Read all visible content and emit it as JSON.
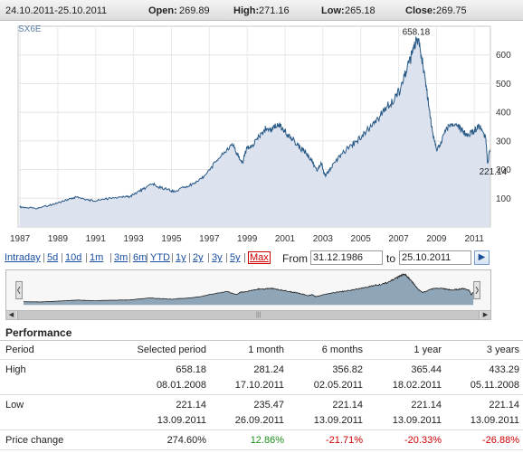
{
  "header": {
    "date_range": "24.10.2011-25.10.2011",
    "open_label": "Open:",
    "open_value": "269.89",
    "high_label": "High:",
    "high_value": "271.16",
    "low_label": "Low:",
    "low_value": "265.18",
    "close_label": "Close:",
    "close_value": "269.75"
  },
  "chart_data": {
    "type": "area",
    "title": "",
    "symbol": "SX6E",
    "xlabel": "",
    "ylabel": "",
    "x_ticks": [
      "1987",
      "1989",
      "1991",
      "1993",
      "1995",
      "1997",
      "1999",
      "2001",
      "2003",
      "2005",
      "2007",
      "2009",
      "2011"
    ],
    "y_ticks": [
      100,
      200,
      300,
      400,
      500,
      600
    ],
    "xlim": [
      1986.9,
      2011.85
    ],
    "ylim": [
      0,
      700
    ],
    "grid": true,
    "y_axis_side": "right",
    "series": [
      {
        "x": [
          1986.98,
          1987.3,
          1987.8,
          1988.2,
          1988.7,
          1989.2,
          1989.6,
          1990.0,
          1990.5,
          1990.9,
          1991.3,
          1991.8,
          1992.3,
          1992.8,
          1993.1,
          1993.5,
          1994.0,
          1994.3,
          1994.8,
          1995.2,
          1995.7,
          1996.2,
          1996.6,
          1997.0,
          1997.4,
          1997.8,
          1998.2,
          1998.5,
          1998.75,
          1999.0,
          1999.2,
          1999.5,
          1999.8,
          2000.0,
          2000.3,
          2000.6,
          2000.9,
          2001.2,
          2001.5,
          2001.8,
          2002.1,
          2002.4,
          2002.7,
          2002.9,
          2003.1,
          2003.3,
          2003.6,
          2004.0,
          2004.4,
          2004.8,
          2005.2,
          2005.6,
          2006.0,
          2006.4,
          2006.8,
          2007.1,
          2007.4,
          2007.7,
          2007.9,
          2008.02,
          2008.2,
          2008.4,
          2008.6,
          2008.8,
          2009.0,
          2009.2,
          2009.5,
          2009.8,
          2010.1,
          2010.4,
          2010.7,
          2011.0,
          2011.2,
          2011.4,
          2011.6,
          2011.7,
          2011.82
        ],
        "y": [
          70,
          68,
          65,
          70,
          78,
          88,
          98,
          104,
          96,
          90,
          96,
          100,
          104,
          106,
          118,
          132,
          150,
          140,
          130,
          122,
          140,
          150,
          168,
          200,
          232,
          262,
          290,
          250,
          225,
          280,
          275,
          305,
          330,
          345,
          335,
          362,
          340,
          320,
          300,
          275,
          260,
          230,
          195,
          225,
          180,
          190,
          225,
          255,
          280,
          300,
          330,
          350,
          385,
          420,
          450,
          480,
          540,
          600,
          640,
          658.18,
          600,
          520,
          420,
          330,
          270,
          285,
          340,
          360,
          355,
          330,
          320,
          335,
          350,
          340,
          310,
          221.14,
          269.75
        ]
      }
    ],
    "annotations": [
      {
        "label": "658.18",
        "x": 2008.02,
        "y": 658.18
      },
      {
        "label": "221.14",
        "x": 2011.7,
        "y": 221.14
      }
    ]
  },
  "toolbar": {
    "ranges": [
      "Intraday",
      "5d",
      "10d",
      "1m",
      "3m",
      "6m",
      "YTD",
      "1y",
      "2y",
      "3y",
      "5y",
      "Max"
    ],
    "active_range": "Max",
    "from_label": "From",
    "from_value": "31.12.1986",
    "to_label": "to",
    "to_value": "25.10.2011",
    "go_icon": "arrow-right-icon"
  },
  "colors": {
    "area_fill": "#dde2ef",
    "line": "#2a5a86",
    "nav_fill": "#8fa6b8",
    "nav_line": "#222222",
    "positive": "#1a8f1a",
    "negative": "#cc0000"
  },
  "performance": {
    "title": "Performance",
    "columns": [
      "Period",
      "Selected period",
      "1 month",
      "6 months",
      "1 year",
      "3 years"
    ],
    "high_label": "High",
    "high": [
      "658.18",
      "281.24",
      "356.82",
      "365.44",
      "433.29"
    ],
    "high_dates": [
      "08.01.2008",
      "17.10.2011",
      "02.05.2011",
      "18.02.2011",
      "05.11.2008"
    ],
    "low_label": "Low",
    "low": [
      "221.14",
      "235.47",
      "221.14",
      "221.14",
      "221.14"
    ],
    "low_dates": [
      "13.09.2011",
      "26.09.2011",
      "13.09.2011",
      "13.09.2011",
      "13.09.2011"
    ],
    "change_label": "Price change",
    "change": [
      "274.60%",
      "12.86%",
      "-21.71%",
      "-20.33%",
      "-26.88%"
    ],
    "change_sign": [
      "neutral",
      "positive",
      "negative",
      "negative",
      "negative"
    ]
  }
}
